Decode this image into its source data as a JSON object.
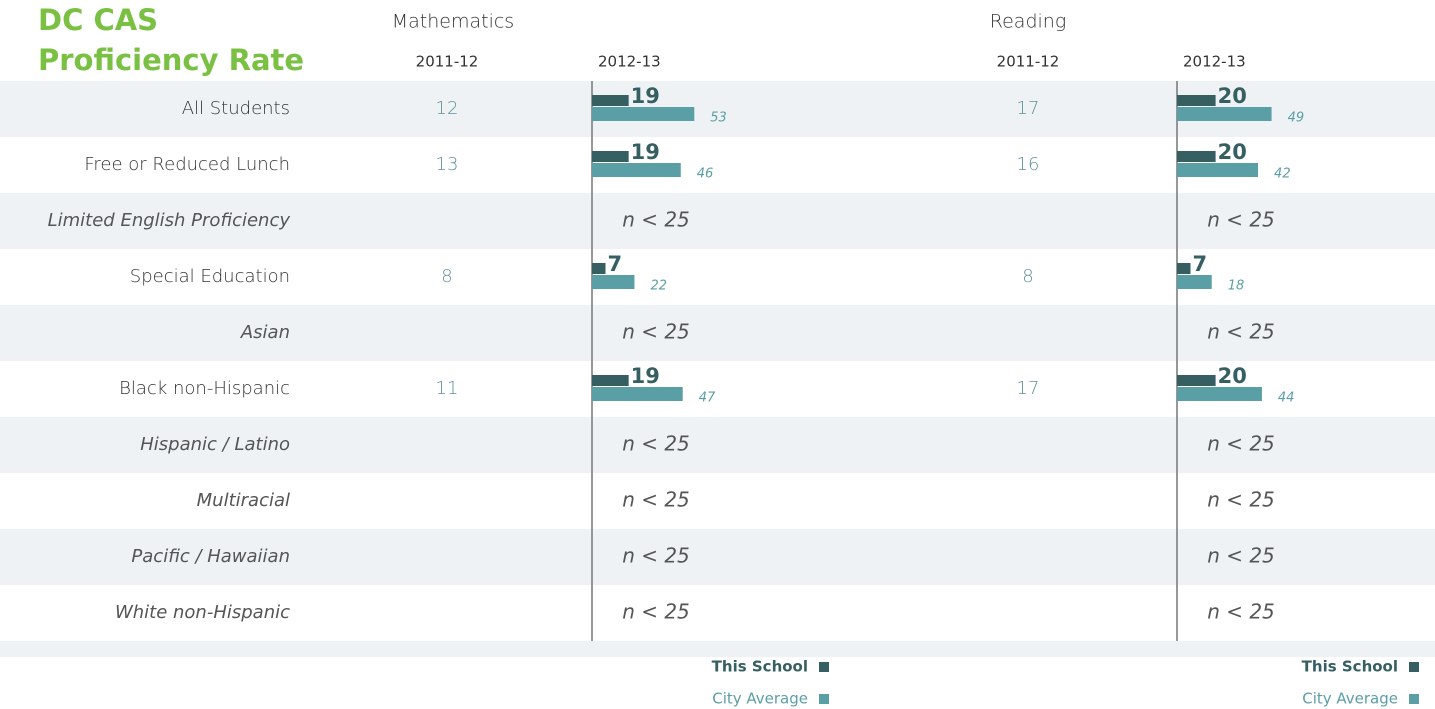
{
  "chart_data": {
    "type": "bar",
    "title": [
      "DC CAS",
      "Proficiency Rate"
    ],
    "subjects": [
      {
        "name": "Mathematics",
        "years": [
          "2011-12",
          "2012-13"
        ]
      },
      {
        "name": "Reading",
        "years": [
          "2011-12",
          "2012-13"
        ]
      }
    ],
    "series": [
      {
        "name": "This School",
        "color": "#365f62"
      },
      {
        "name": "City Average",
        "color": "#5b9fa6"
      }
    ],
    "xlim": [
      0,
      100
    ],
    "rows": [
      {
        "label": "All Students",
        "cells": [
          {
            "prev": 12,
            "school": 19,
            "city": 53
          },
          {
            "prev": 17,
            "school": 20,
            "city": 49
          }
        ]
      },
      {
        "label": "Free or Reduced Lunch",
        "cells": [
          {
            "prev": 13,
            "school": 19,
            "city": 46
          },
          {
            "prev": 16,
            "school": 20,
            "city": 42
          }
        ]
      },
      {
        "label": "Limited English Proficiency",
        "cells": [
          {
            "note": "n < 25"
          },
          {
            "note": "n < 25"
          }
        ]
      },
      {
        "label": "Special Education",
        "cells": [
          {
            "prev": 8,
            "school": 7,
            "city": 22
          },
          {
            "prev": 8,
            "school": 7,
            "city": 18
          }
        ]
      },
      {
        "label": "Asian",
        "cells": [
          {
            "note": "n < 25"
          },
          {
            "note": "n < 25"
          }
        ]
      },
      {
        "label": "Black non-Hispanic",
        "cells": [
          {
            "prev": 11,
            "school": 19,
            "city": 47
          },
          {
            "prev": 17,
            "school": 20,
            "city": 44
          }
        ]
      },
      {
        "label": "Hispanic / Latino",
        "cells": [
          {
            "note": "n < 25"
          },
          {
            "note": "n < 25"
          }
        ]
      },
      {
        "label": "Multiracial",
        "cells": [
          {
            "note": "n < 25"
          },
          {
            "note": "n < 25"
          }
        ]
      },
      {
        "label": "Pacific / Hawaiian",
        "cells": [
          {
            "note": "n < 25"
          },
          {
            "note": "n < 25"
          }
        ]
      },
      {
        "label": "White non-Hispanic",
        "cells": [
          {
            "note": "n < 25"
          },
          {
            "note": "n < 25"
          }
        ]
      }
    ]
  }
}
